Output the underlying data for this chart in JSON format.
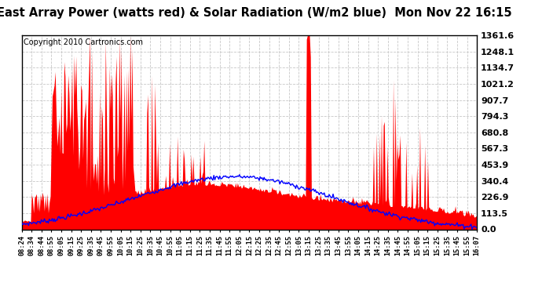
{
  "title": "East Array Power (watts red) & Solar Radiation (W/m2 blue)  Mon Nov 22 16:15",
  "copyright": "Copyright 2010 Cartronics.com",
  "ymax": 1361.6,
  "yticks": [
    0.0,
    113.5,
    226.9,
    340.4,
    453.9,
    567.3,
    680.8,
    794.3,
    907.7,
    1021.2,
    1134.7,
    1248.1,
    1361.6
  ],
  "ytick_labels": [
    "0.0",
    "113.5",
    "226.9",
    "340.4",
    "453.9",
    "567.3",
    "680.8",
    "794.3",
    "907.7",
    "1021.2",
    "1134.7",
    "1248.1",
    "1361.6"
  ],
  "bg_color": "#ffffff",
  "plot_bg_color": "#ffffff",
  "grid_color": "#c8c8c8",
  "red_color": "#ff0000",
  "blue_color": "#0000ff",
  "title_fontsize": 10.5,
  "copyright_fontsize": 7,
  "xtick_fontsize": 6.2,
  "ytick_fontsize": 8,
  "xtick_times": [
    "08:24",
    "08:34",
    "08:44",
    "08:55",
    "09:05",
    "09:15",
    "09:25",
    "09:35",
    "09:45",
    "09:55",
    "10:05",
    "10:15",
    "10:25",
    "10:35",
    "10:45",
    "10:55",
    "11:05",
    "11:15",
    "11:25",
    "11:35",
    "11:45",
    "11:55",
    "12:05",
    "12:15",
    "12:25",
    "12:35",
    "12:45",
    "12:55",
    "13:05",
    "13:15",
    "13:25",
    "13:35",
    "13:45",
    "13:55",
    "14:05",
    "14:15",
    "14:25",
    "14:35",
    "14:45",
    "14:55",
    "15:05",
    "15:15",
    "15:25",
    "15:35",
    "15:45",
    "15:55",
    "16:07"
  ]
}
